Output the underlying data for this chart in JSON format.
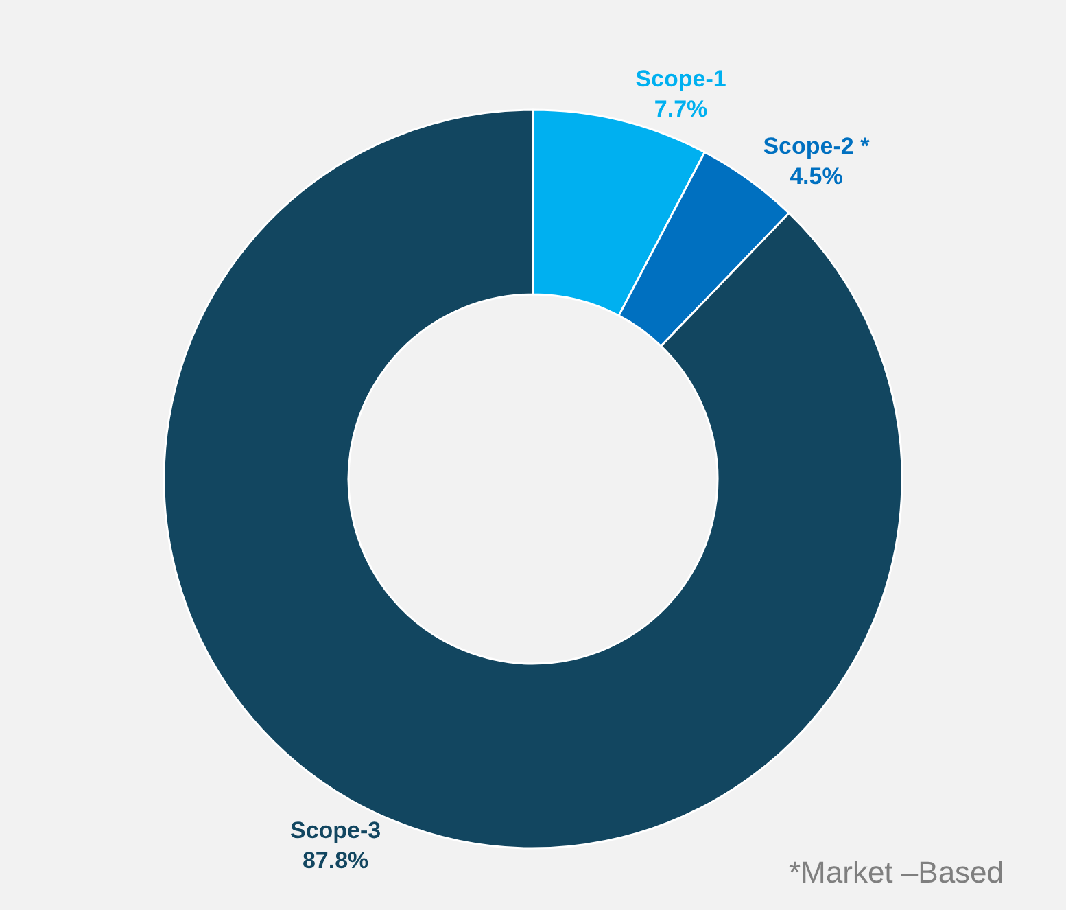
{
  "chart_data": {
    "type": "donut",
    "categories": [
      "Scope-1",
      "Scope-2 *",
      "Scope-3"
    ],
    "values": [
      7.7,
      4.5,
      87.8
    ],
    "colors": [
      "#00b0f0",
      "#0070c0",
      "#124660"
    ],
    "value_labels": [
      "7.7%",
      "4.5%",
      "87.8%"
    ],
    "annotations": [
      "*Market –Based"
    ],
    "legend": false
  }
}
